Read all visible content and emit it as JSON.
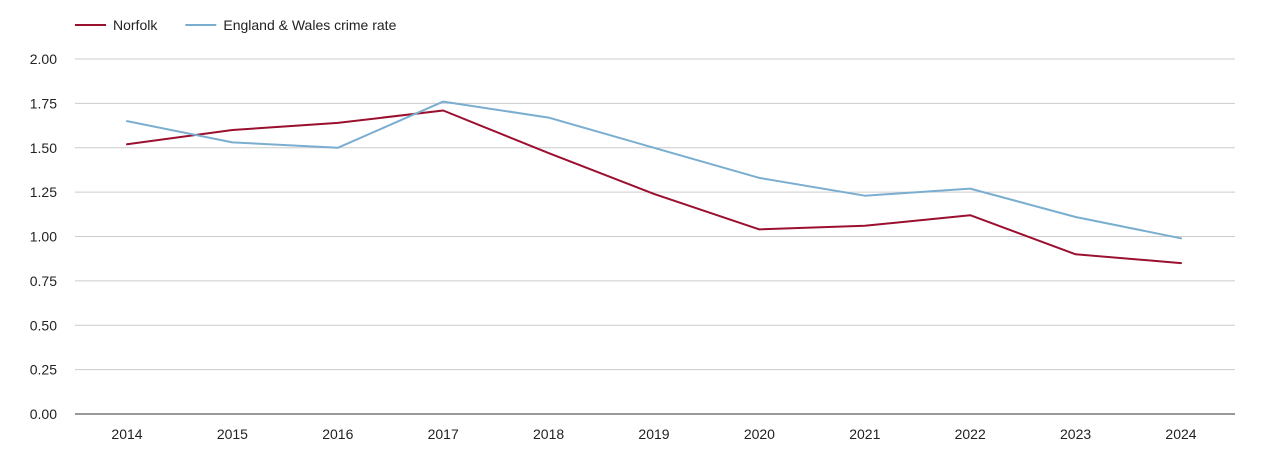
{
  "chart_data": {
    "type": "line",
    "title": "",
    "xlabel": "",
    "ylabel": "",
    "x": [
      "2014",
      "2015",
      "2016",
      "2017",
      "2018",
      "2019",
      "2020",
      "2021",
      "2022",
      "2023",
      "2024"
    ],
    "ylim": [
      0,
      2.0
    ],
    "yticks": [
      "0.00",
      "0.25",
      "0.50",
      "0.75",
      "1.00",
      "1.25",
      "1.50",
      "1.75",
      "2.00"
    ],
    "grid": true,
    "legend_position": "top-left",
    "series": [
      {
        "name": "Norfolk",
        "color": "#9b0f2f",
        "values": [
          1.52,
          1.6,
          1.64,
          1.71,
          1.47,
          1.24,
          1.04,
          1.06,
          1.12,
          0.9,
          0.85
        ]
      },
      {
        "name": "England & Wales crime rate",
        "color": "#7aaed0",
        "values": [
          1.65,
          1.53,
          1.5,
          1.76,
          1.67,
          1.5,
          1.33,
          1.23,
          1.27,
          1.11,
          0.99
        ]
      }
    ]
  }
}
